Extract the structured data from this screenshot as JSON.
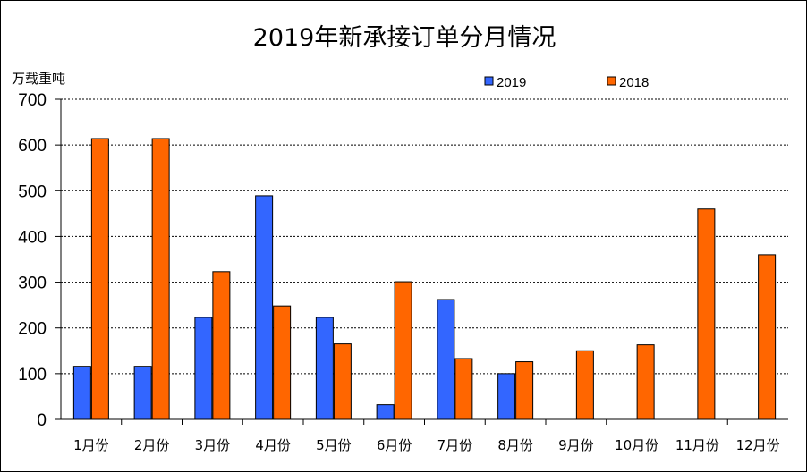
{
  "chart_data": {
    "type": "bar",
    "title": "2019年新承接订单分月情况",
    "ylabel": "万载重吨",
    "xlabel": "",
    "ylim": [
      0,
      700
    ],
    "yticks": [
      0,
      100,
      200,
      300,
      400,
      500,
      600,
      700
    ],
    "grid": true,
    "legend_position": "top-right",
    "categories": [
      "1月份",
      "2月份",
      "3月份",
      "4月份",
      "5月份",
      "6月份",
      "7月份",
      "8月份",
      "9月份",
      "10月份",
      "11月份",
      "12月份"
    ],
    "series": [
      {
        "name": "2019",
        "color": "#3366FF",
        "values": [
          116,
          116,
          223,
          489,
          223,
          32,
          262,
          100,
          null,
          null,
          null,
          null
        ]
      },
      {
        "name": "2018",
        "color": "#FF6600",
        "values": [
          614,
          614,
          323,
          248,
          165,
          301,
          133,
          126,
          150,
          163,
          460,
          360
        ]
      }
    ]
  }
}
